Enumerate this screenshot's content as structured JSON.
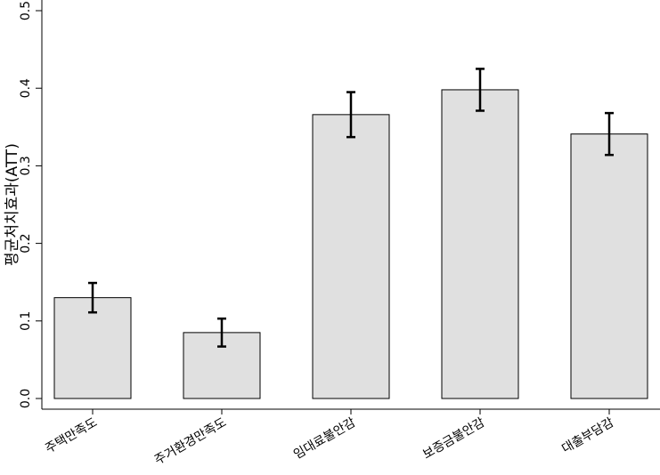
{
  "chart_data": {
    "type": "bar",
    "y_label": "평균처치효과(ATT)",
    "categories": [
      "주택만족도",
      "주거환경만족도",
      "임대료불안감",
      "보증금불안감",
      "대출부담감"
    ],
    "values": [
      0.13,
      0.085,
      0.366,
      0.398,
      0.341
    ],
    "errors": [
      0.019,
      0.018,
      0.029,
      0.027,
      0.027
    ],
    "color": "#e0e0e0",
    "ylim": [
      0,
      0.5
    ],
    "yticks": [
      {
        "value": 0,
        "label": "0.0"
      },
      0.1,
      0.2,
      0.3,
      0.4,
      0.5
    ]
  }
}
